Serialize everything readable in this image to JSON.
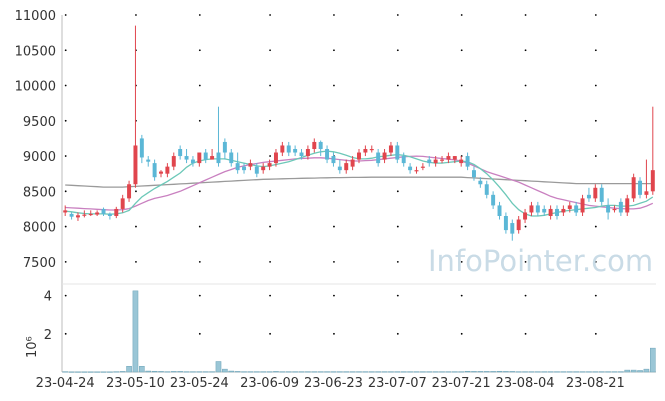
{
  "chart_data": {
    "type": "candlestick",
    "watermark": "InfoPointer.com",
    "colors": {
      "up": "#e0454d",
      "down": "#5bb7d6",
      "ma_short": "#6cc8b8",
      "ma_mid": "#c980c0",
      "ma_long": "#9a9a9a",
      "volume": "#9ac6d6",
      "volume_edge": "#6da4b8",
      "axis": "#bcbcbc"
    },
    "price_axis": {
      "ylim": [
        7200,
        11000
      ],
      "ticks": [
        "7500",
        "8000",
        "8500",
        "9000",
        "9500",
        "10000",
        "10500",
        "11000"
      ]
    },
    "volume_axis": {
      "label": "10⁶",
      "ylim": [
        0,
        4.4
      ],
      "ticks": [
        "2",
        "4"
      ]
    },
    "x_tick_labels": [
      "23-04-24",
      "23-05-10",
      "23-05-24",
      "23-06-09",
      "23-06-23",
      "23-07-07",
      "23-07-21",
      "23-08-04",
      "23-08-21"
    ],
    "x_tick_index": [
      0,
      11,
      21,
      32,
      42,
      52,
      62,
      72,
      83
    ],
    "candles": [
      [
        8200,
        8230,
        8150,
        8300
      ],
      [
        8180,
        8140,
        8100,
        8200
      ],
      [
        8130,
        8160,
        8080,
        8200
      ],
      [
        8160,
        8170,
        8130,
        8230
      ],
      [
        8170,
        8180,
        8150,
        8230
      ],
      [
        8170,
        8200,
        8150,
        8230
      ],
      [
        8250,
        8180,
        8150,
        8270
      ],
      [
        8180,
        8150,
        8100,
        8200
      ],
      [
        8150,
        8250,
        8120,
        8280
      ],
      [
        8250,
        8400,
        8200,
        8450
      ],
      [
        8400,
        8600,
        8350,
        8650
      ],
      [
        8600,
        9150,
        8550,
        10850
      ],
      [
        9250,
        8980,
        8900,
        9300
      ],
      [
        8950,
        8920,
        8850,
        9000
      ],
      [
        8900,
        8700,
        8650,
        8950
      ],
      [
        8750,
        8780,
        8700,
        8800
      ],
      [
        8750,
        8850,
        8700,
        8900
      ],
      [
        8850,
        9000,
        8800,
        9050
      ],
      [
        9100,
        9000,
        8950,
        9150
      ],
      [
        9000,
        8950,
        8900,
        9100
      ],
      [
        8950,
        8900,
        8850,
        9000
      ],
      [
        8900,
        9050,
        8850,
        9050
      ],
      [
        9050,
        8950,
        8900,
        9100
      ],
      [
        8950,
        9000,
        8950,
        9100
      ],
      [
        9050,
        8900,
        8850,
        9700
      ],
      [
        9200,
        9050,
        8950,
        9250
      ],
      [
        9050,
        8900,
        8850,
        9100
      ],
      [
        8900,
        8800,
        8750,
        9050
      ],
      [
        8850,
        8800,
        8750,
        8900
      ],
      [
        8850,
        8900,
        8800,
        8950
      ],
      [
        8850,
        8750,
        8700,
        8900
      ],
      [
        8800,
        8850,
        8750,
        8900
      ],
      [
        8850,
        8900,
        8800,
        8950
      ],
      [
        8900,
        9050,
        8850,
        9100
      ],
      [
        9050,
        9150,
        9000,
        9200
      ],
      [
        9150,
        9050,
        9000,
        9200
      ],
      [
        9100,
        9050,
        9000,
        9150
      ],
      [
        9050,
        9000,
        8950,
        9100
      ],
      [
        9000,
        9100,
        8950,
        9150
      ],
      [
        9100,
        9200,
        9050,
        9250
      ],
      [
        9200,
        9100,
        9000,
        9220
      ],
      [
        9100,
        8950,
        8900,
        9150
      ],
      [
        9000,
        8900,
        8850,
        9050
      ],
      [
        8850,
        8800,
        8750,
        8950
      ],
      [
        8800,
        8900,
        8750,
        8950
      ],
      [
        8850,
        8950,
        8800,
        9000
      ],
      [
        8950,
        9050,
        8900,
        9100
      ],
      [
        9050,
        9100,
        9000,
        9150
      ],
      [
        9100,
        9100,
        9050,
        9150
      ],
      [
        9050,
        8900,
        8850,
        9100
      ],
      [
        8950,
        9050,
        8900,
        9100
      ],
      [
        9050,
        9150,
        9000,
        9200
      ],
      [
        9150,
        8950,
        8900,
        9200
      ],
      [
        9000,
        8900,
        8850,
        9050
      ],
      [
        8850,
        8800,
        8750,
        8900
      ],
      [
        8800,
        8800,
        8750,
        8850
      ],
      [
        8850,
        8850,
        8800,
        8900
      ],
      [
        8950,
        8900,
        8850,
        9000
      ],
      [
        8900,
        8950,
        8850,
        9000
      ],
      [
        8950,
        8950,
        8900,
        9000
      ],
      [
        8950,
        9000,
        8900,
        9050
      ],
      [
        8950,
        9000,
        8900,
        9000
      ],
      [
        8900,
        8950,
        8850,
        9000
      ],
      [
        9000,
        8850,
        8800,
        9050
      ],
      [
        8800,
        8700,
        8650,
        8850
      ],
      [
        8650,
        8600,
        8550,
        8700
      ],
      [
        8600,
        8450,
        8400,
        8650
      ],
      [
        8450,
        8300,
        8250,
        8500
      ],
      [
        8300,
        8150,
        8100,
        8350
      ],
      [
        8150,
        7950,
        7900,
        8200
      ],
      [
        8050,
        7900,
        7800,
        8100
      ],
      [
        7950,
        8100,
        7900,
        8150
      ],
      [
        8100,
        8200,
        8050,
        8250
      ],
      [
        8200,
        8300,
        8150,
        8350
      ],
      [
        8300,
        8200,
        8150,
        8350
      ],
      [
        8250,
        8200,
        8150,
        8300
      ],
      [
        8150,
        8250,
        8100,
        8300
      ],
      [
        8250,
        8150,
        8100,
        8300
      ],
      [
        8200,
        8250,
        8150,
        8300
      ],
      [
        8250,
        8300,
        8200,
        8350
      ],
      [
        8300,
        8200,
        8150,
        8350
      ],
      [
        8200,
        8400,
        8150,
        8450
      ],
      [
        8450,
        8400,
        8350,
        8550
      ],
      [
        8400,
        8550,
        8350,
        8600
      ],
      [
        8550,
        8350,
        8300,
        8600
      ],
      [
        8300,
        8200,
        8100,
        8400
      ],
      [
        8250,
        8250,
        8200,
        8300
      ],
      [
        8350,
        8200,
        8150,
        8400
      ],
      [
        8200,
        8400,
        8150,
        8450
      ],
      [
        8400,
        8700,
        8350,
        8750
      ],
      [
        8650,
        8450,
        8400,
        8700
      ],
      [
        8450,
        8500,
        8400,
        8950
      ],
      [
        8500,
        8800,
        8450,
        9700
      ]
    ],
    "ma_short": [
      8220,
      8210,
      8195,
      8185,
      8180,
      8180,
      8180,
      8175,
      8180,
      8195,
      8230,
      8330,
      8420,
      8480,
      8540,
      8590,
      8640,
      8700,
      8760,
      8840,
      8900,
      8930,
      8950,
      8960,
      8960,
      8960,
      8940,
      8920,
      8900,
      8880,
      8860,
      8850,
      8860,
      8880,
      8900,
      8920,
      8950,
      8980,
      9010,
      9040,
      9060,
      9070,
      9060,
      9040,
      9010,
      8980,
      8960,
      8960,
      8970,
      8990,
      9000,
      9010,
      9020,
      9010,
      8990,
      8960,
      8930,
      8910,
      8900,
      8900,
      8910,
      8920,
      8930,
      8920,
      8880,
      8820,
      8750,
      8660,
      8560,
      8450,
      8330,
      8240,
      8180,
      8150,
      8150,
      8160,
      8180,
      8200,
      8220,
      8230,
      8240,
      8250,
      8260,
      8270,
      8290,
      8300,
      8300,
      8290,
      8290,
      8300,
      8330,
      8360,
      8420
    ],
    "ma_mid": [
      8270,
      8265,
      8260,
      8255,
      8250,
      8245,
      8240,
      8235,
      8235,
      8240,
      8255,
      8290,
      8330,
      8370,
      8400,
      8420,
      8440,
      8470,
      8500,
      8540,
      8580,
      8620,
      8660,
      8700,
      8740,
      8780,
      8810,
      8840,
      8860,
      8880,
      8895,
      8910,
      8920,
      8930,
      8940,
      8950,
      8960,
      8965,
      8970,
      8975,
      8975,
      8970,
      8960,
      8950,
      8940,
      8930,
      8930,
      8935,
      8940,
      8950,
      8960,
      8970,
      8980,
      8990,
      8995,
      9000,
      8995,
      8985,
      8975,
      8965,
      8955,
      8945,
      8930,
      8900,
      8860,
      8820,
      8780,
      8750,
      8720,
      8690,
      8660,
      8630,
      8590,
      8550,
      8510,
      8470,
      8430,
      8400,
      8380,
      8360,
      8340,
      8320,
      8300,
      8290,
      8280,
      8270,
      8260,
      8255,
      8250,
      8250,
      8260,
      8290,
      8330
    ],
    "ma_long": [
      8590,
      8585,
      8580,
      8575,
      8570,
      8565,
      8560,
      8560,
      8560,
      8560,
      8565,
      8570,
      8575,
      8580,
      8585,
      8590,
      8595,
      8600,
      8605,
      8610,
      8615,
      8620,
      8625,
      8630,
      8635,
      8640,
      8645,
      8650,
      8655,
      8660,
      8665,
      8670,
      8672,
      8675,
      8678,
      8680,
      8682,
      8684,
      8686,
      8688,
      8690,
      8692,
      8694,
      8695,
      8696,
      8697,
      8698,
      8699,
      8700,
      8700,
      8700,
      8700,
      8700,
      8700,
      8700,
      8700,
      8700,
      8700,
      8700,
      8700,
      8700,
      8700,
      8700,
      8695,
      8690,
      8685,
      8680,
      8675,
      8670,
      8665,
      8660,
      8655,
      8650,
      8645,
      8640,
      8635,
      8630,
      8625,
      8620,
      8615,
      8610,
      8610,
      8610,
      8610,
      8610,
      8610,
      8610,
      8610,
      8610,
      8610,
      8610,
      8610,
      8610
    ],
    "volumes": [
      0.02,
      0.01,
      0.01,
      0.01,
      0.01,
      0.01,
      0.01,
      0.01,
      0.02,
      0.03,
      0.3,
      4.25,
      0.3,
      0.05,
      0.04,
      0.03,
      0.02,
      0.03,
      0.03,
      0.02,
      0.02,
      0.02,
      0.02,
      0.02,
      0.55,
      0.15,
      0.05,
      0.03,
      0.02,
      0.02,
      0.02,
      0.02,
      0.02,
      0.03,
      0.02,
      0.02,
      0.02,
      0.02,
      0.02,
      0.02,
      0.02,
      0.02,
      0.02,
      0.02,
      0.02,
      0.02,
      0.02,
      0.02,
      0.02,
      0.02,
      0.02,
      0.02,
      0.02,
      0.02,
      0.02,
      0.02,
      0.02,
      0.02,
      0.02,
      0.02,
      0.02,
      0.02,
      0.02,
      0.04,
      0.03,
      0.03,
      0.03,
      0.03,
      0.04,
      0.03,
      0.03,
      0.02,
      0.02,
      0.02,
      0.02,
      0.02,
      0.02,
      0.02,
      0.02,
      0.02,
      0.02,
      0.02,
      0.02,
      0.02,
      0.02,
      0.02,
      0.02,
      0.02,
      0.1,
      0.1,
      0.08,
      0.15,
      1.25
    ]
  }
}
